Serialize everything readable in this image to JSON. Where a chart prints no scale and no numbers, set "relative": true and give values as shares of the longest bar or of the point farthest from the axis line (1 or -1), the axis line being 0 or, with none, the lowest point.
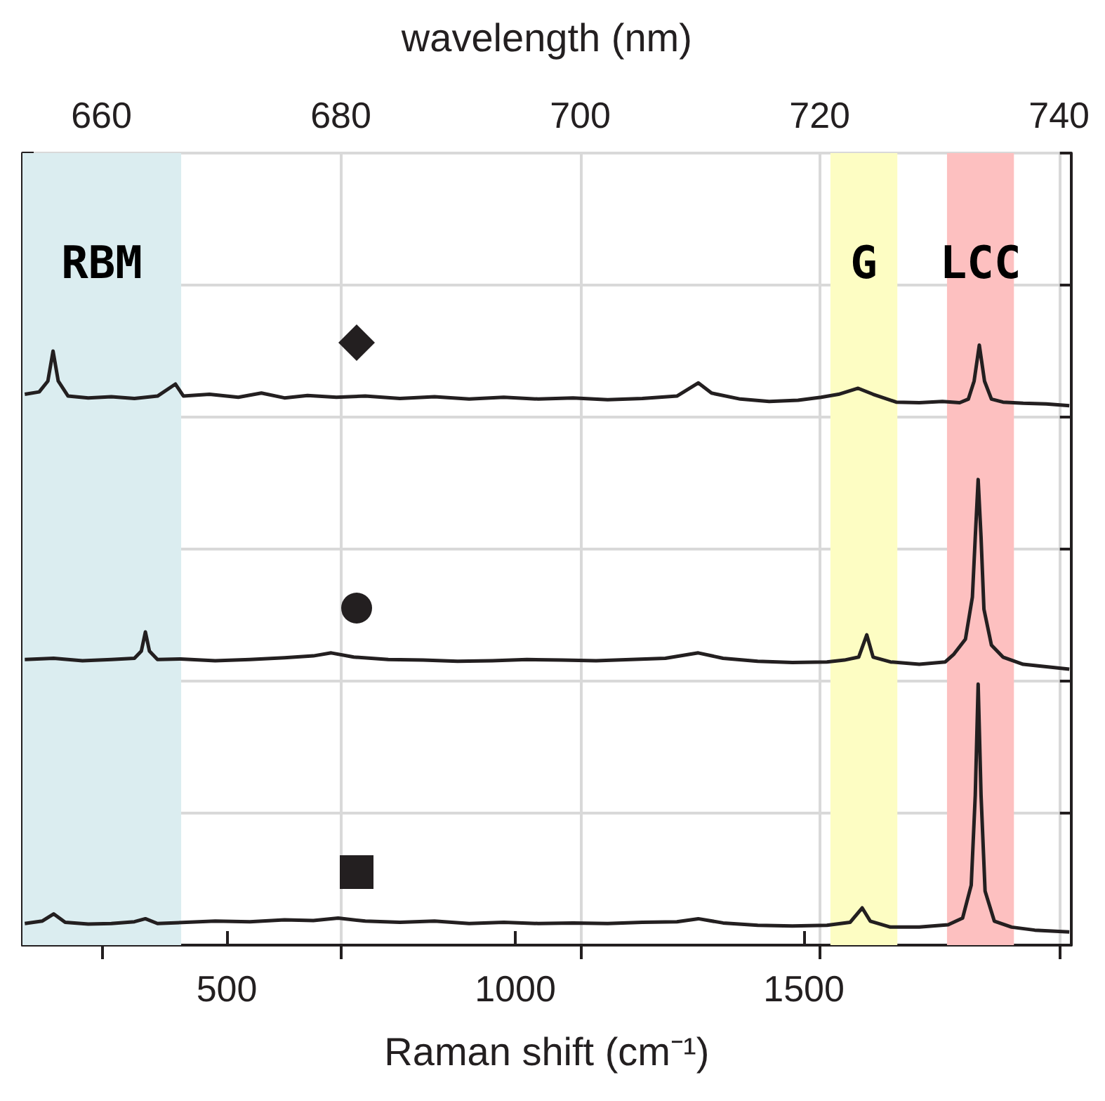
{
  "chart_data": {
    "type": "line",
    "relative": true,
    "xlabel": "Raman shift (cm⁻¹)",
    "x2label": "wavelength (nm)",
    "xlim": [
      146,
      1963
    ],
    "xticks": [
      500,
      1000,
      1500
    ],
    "x2lim": [
      653.4,
      741
    ],
    "x2ticks": [
      660,
      680,
      700,
      720,
      740
    ],
    "grid": true,
    "marker": "none",
    "line_style": "solid",
    "bands": [
      {
        "axis": "x",
        "from": 146,
        "to": 421,
        "label": "RBM",
        "color": "#dbedf0"
      },
      {
        "axis": "x",
        "from": 1546,
        "to": 1662,
        "label": "G",
        "color": "#fdfdc3"
      },
      {
        "axis": "x",
        "from": 1748,
        "to": 1864,
        "label": "LCC",
        "color": "#fdc0c0"
      }
    ],
    "series": [
      {
        "color": "#231f20",
        "x": [
          150,
          175,
          190,
          199,
          208,
          225,
          260,
          300,
          340,
          380,
          411,
          425,
          470,
          520,
          560,
          600,
          640,
          690,
          740,
          800,
          860,
          920,
          980,
          1040,
          1100,
          1160,
          1220,
          1280,
          1317,
          1340,
          1390,
          1440,
          1490,
          1530,
          1560,
          1594,
          1620,
          1660,
          1700,
          1740,
          1770,
          1785,
          1795,
          1804,
          1813,
          1825,
          1845,
          1880,
          1920,
          1960
        ],
        "values": [
          0.918,
          0.922,
          0.94,
          0.99,
          0.94,
          0.915,
          0.912,
          0.914,
          0.911,
          0.915,
          0.935,
          0.915,
          0.918,
          0.913,
          0.92,
          0.912,
          0.916,
          0.913,
          0.915,
          0.911,
          0.914,
          0.91,
          0.913,
          0.91,
          0.912,
          0.909,
          0.911,
          0.915,
          0.937,
          0.92,
          0.91,
          0.906,
          0.908,
          0.913,
          0.918,
          0.928,
          0.918,
          0.905,
          0.904,
          0.906,
          0.904,
          0.91,
          0.94,
          1,
          0.94,
          0.91,
          0.905,
          0.903,
          0.902,
          0.899
        ]
      },
      {
        "color": "#231f20",
        "x": [
          150,
          200,
          250,
          300,
          340,
          352,
          359,
          366,
          380,
          420,
          480,
          540,
          600,
          650,
          681,
          720,
          780,
          840,
          900,
          960,
          1020,
          1080,
          1140,
          1200,
          1260,
          1317,
          1360,
          1420,
          1480,
          1540,
          1570,
          1595,
          1609,
          1620,
          1650,
          1700,
          1745,
          1760,
          1780,
          1792,
          1797,
          1802,
          1807,
          1812,
          1825,
          1845,
          1880,
          1920,
          1960
        ],
        "values": [
          0.476,
          0.478,
          0.474,
          0.476,
          0.478,
          0.49,
          0.522,
          0.49,
          0.476,
          0.477,
          0.474,
          0.476,
          0.479,
          0.482,
          0.487,
          0.48,
          0.476,
          0.475,
          0.473,
          0.474,
          0.476,
          0.475,
          0.474,
          0.476,
          0.478,
          0.487,
          0.478,
          0.473,
          0.471,
          0.472,
          0.475,
          0.48,
          0.517,
          0.48,
          0.472,
          0.468,
          0.472,
          0.485,
          0.51,
          0.58,
          0.68,
          0.776,
          0.68,
          0.56,
          0.5,
          0.48,
          0.468,
          0.464,
          0.46
        ]
      },
      {
        "color": "#231f20",
        "x": [
          150,
          180,
          200,
          220,
          260,
          300,
          340,
          359,
          380,
          430,
          480,
          540,
          600,
          650,
          693,
          740,
          800,
          860,
          920,
          980,
          1040,
          1100,
          1160,
          1220,
          1280,
          1317,
          1360,
          1420,
          1480,
          1540,
          1580,
          1601,
          1615,
          1650,
          1700,
          1750,
          1775,
          1790,
          1797,
          1802,
          1807,
          1814,
          1830,
          1860,
          1900,
          1960
        ],
        "values": [
          0.036,
          0.04,
          0.052,
          0.038,
          0.035,
          0.036,
          0.039,
          0.044,
          0.036,
          0.038,
          0.04,
          0.039,
          0.042,
          0.041,
          0.045,
          0.04,
          0.038,
          0.04,
          0.036,
          0.038,
          0.036,
          0.037,
          0.036,
          0.038,
          0.039,
          0.044,
          0.037,
          0.033,
          0.032,
          0.033,
          0.038,
          0.062,
          0.04,
          0.03,
          0.03,
          0.034,
          0.045,
          0.1,
          0.25,
          0.435,
          0.25,
          0.09,
          0.04,
          0.03,
          0.025,
          0.022
        ]
      }
    ]
  }
}
